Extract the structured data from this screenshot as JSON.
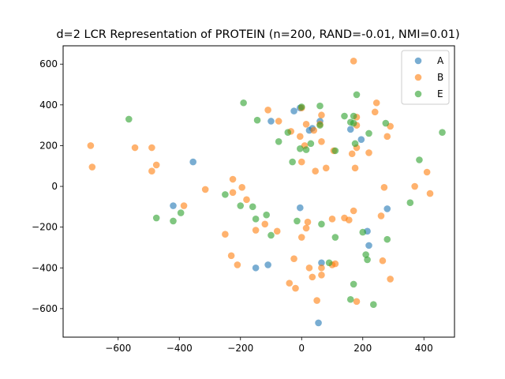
{
  "chart_data": {
    "type": "scatter",
    "title": "d=2 LCR Representation of PROTEIN (n=200, RAND=-0.01, NMI=0.01)",
    "xlabel": "",
    "ylabel": "",
    "xlim": [
      -780,
      500
    ],
    "ylim": [
      -740,
      690
    ],
    "xticks": [
      -600,
      -400,
      -200,
      0,
      200,
      400
    ],
    "yticks": [
      -600,
      -400,
      -200,
      0,
      200,
      400,
      600
    ],
    "xtick_labels": [
      "−600",
      "−400",
      "−200",
      "0",
      "200",
      "400"
    ],
    "ytick_labels": [
      "−600",
      "−400",
      "−200",
      "0",
      "200",
      "400",
      "600"
    ],
    "grid": false,
    "legend_position": "top-right",
    "series": [
      {
        "name": "A",
        "color": "#1f77b4",
        "points": [
          [
            -355,
            120
          ],
          [
            -420,
            -95
          ],
          [
            -100,
            320
          ],
          [
            -25,
            370
          ],
          [
            -5,
            385
          ],
          [
            25,
            275
          ],
          [
            35,
            285
          ],
          [
            160,
            280
          ],
          [
            195,
            230
          ],
          [
            60,
            320
          ],
          [
            -5,
            -105
          ],
          [
            -110,
            -385
          ],
          [
            -150,
            -400
          ],
          [
            65,
            -375
          ],
          [
            55,
            -670
          ],
          [
            215,
            -220
          ],
          [
            220,
            -290
          ],
          [
            280,
            -110
          ]
        ]
      },
      {
        "name": "B",
        "color": "#ff7f0e",
        "points": [
          [
            -690,
            200
          ],
          [
            -685,
            95
          ],
          [
            -545,
            190
          ],
          [
            -490,
            190
          ],
          [
            -490,
            75
          ],
          [
            -475,
            105
          ],
          [
            -385,
            -95
          ],
          [
            -315,
            -15
          ],
          [
            -225,
            35
          ],
          [
            -225,
            -30
          ],
          [
            -195,
            -5
          ],
          [
            -180,
            -65
          ],
          [
            -150,
            -215
          ],
          [
            -120,
            -185
          ],
          [
            -80,
            -220
          ],
          [
            -250,
            -235
          ],
          [
            -230,
            -340
          ],
          [
            -210,
            -385
          ],
          [
            -110,
            375
          ],
          [
            -75,
            320
          ],
          [
            -35,
            270
          ],
          [
            0,
            385
          ],
          [
            10,
            200
          ],
          [
            15,
            305
          ],
          [
            40,
            275
          ],
          [
            45,
            75
          ],
          [
            60,
            305
          ],
          [
            65,
            350
          ],
          [
            65,
            220
          ],
          [
            80,
            90
          ],
          [
            0,
            120
          ],
          [
            -5,
            245
          ],
          [
            15,
            -205
          ],
          [
            20,
            -175
          ],
          [
            0,
            -250
          ],
          [
            -25,
            -355
          ],
          [
            -40,
            -475
          ],
          [
            -20,
            -500
          ],
          [
            25,
            -400
          ],
          [
            35,
            -445
          ],
          [
            50,
            -560
          ],
          [
            65,
            -400
          ],
          [
            65,
            -435
          ],
          [
            100,
            -385
          ],
          [
            110,
            -380
          ],
          [
            100,
            -160
          ],
          [
            140,
            -155
          ],
          [
            155,
            -165
          ],
          [
            170,
            -120
          ],
          [
            105,
            175
          ],
          [
            165,
            160
          ],
          [
            175,
            90
          ],
          [
            180,
            190
          ],
          [
            180,
            300
          ],
          [
            180,
            340
          ],
          [
            170,
            615
          ],
          [
            240,
            365
          ],
          [
            245,
            410
          ],
          [
            220,
            165
          ],
          [
            260,
            -145
          ],
          [
            265,
            -365
          ],
          [
            270,
            -5
          ],
          [
            280,
            245
          ],
          [
            290,
            295
          ],
          [
            290,
            -455
          ],
          [
            370,
            0
          ],
          [
            410,
            70
          ],
          [
            420,
            -35
          ],
          [
            180,
            -565
          ]
        ]
      },
      {
        "name": "E",
        "color": "#2ca02c",
        "points": [
          [
            -565,
            330
          ],
          [
            -475,
            -155
          ],
          [
            -420,
            -170
          ],
          [
            -395,
            -130
          ],
          [
            -250,
            -40
          ],
          [
            -200,
            -95
          ],
          [
            -190,
            410
          ],
          [
            -160,
            -100
          ],
          [
            -150,
            -160
          ],
          [
            -145,
            325
          ],
          [
            -115,
            -140
          ],
          [
            -100,
            -240
          ],
          [
            -75,
            220
          ],
          [
            -45,
            265
          ],
          [
            -30,
            120
          ],
          [
            -15,
            -170
          ],
          [
            -5,
            185
          ],
          [
            0,
            390
          ],
          [
            15,
            180
          ],
          [
            30,
            210
          ],
          [
            60,
            395
          ],
          [
            60,
            300
          ],
          [
            65,
            -185
          ],
          [
            90,
            -375
          ],
          [
            110,
            175
          ],
          [
            110,
            -250
          ],
          [
            140,
            345
          ],
          [
            160,
            315
          ],
          [
            170,
            345
          ],
          [
            170,
            310
          ],
          [
            175,
            210
          ],
          [
            180,
            450
          ],
          [
            200,
            -225
          ],
          [
            210,
            -335
          ],
          [
            215,
            -360
          ],
          [
            220,
            260
          ],
          [
            170,
            -480
          ],
          [
            160,
            -555
          ],
          [
            235,
            -580
          ],
          [
            275,
            310
          ],
          [
            280,
            -260
          ],
          [
            355,
            -80
          ],
          [
            385,
            130
          ],
          [
            460,
            265
          ]
        ]
      }
    ]
  }
}
